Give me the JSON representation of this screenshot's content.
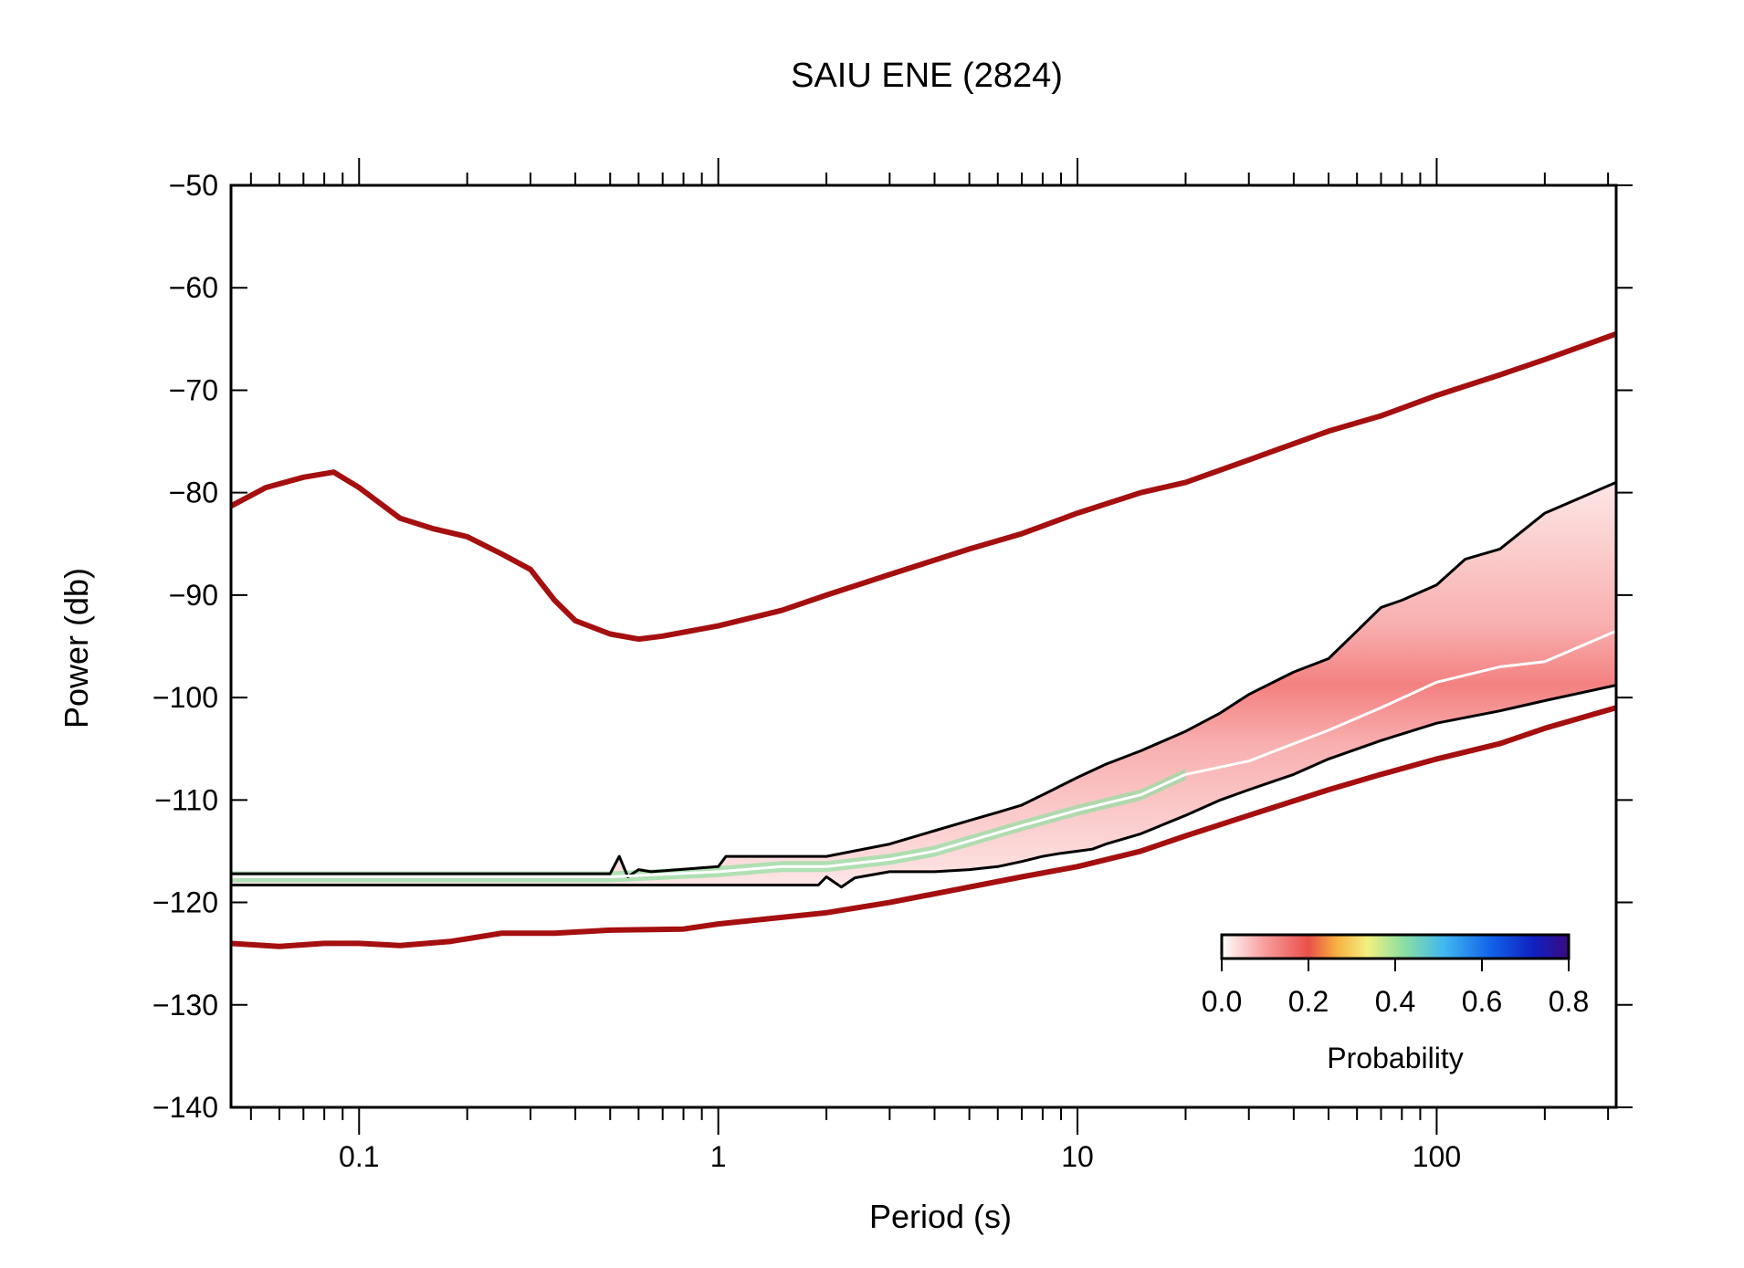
{
  "chart_data": {
    "type": "line",
    "title": "SAIU ENE (2824)",
    "xlabel": "Period (s)",
    "ylabel": "Power (db)",
    "x_scale": "log",
    "xlim": [
      0.044,
      316
    ],
    "ylim": [
      -140,
      -50
    ],
    "x_ticks": [
      0.1,
      1,
      10,
      100
    ],
    "x_tick_labels": [
      "0.1",
      "1",
      "10",
      "100"
    ],
    "y_ticks": [
      -50,
      -60,
      -70,
      -80,
      -90,
      -100,
      -110,
      -120,
      -130,
      -140
    ],
    "y_tick_labels": [
      "−50",
      "−60",
      "−70",
      "−80",
      "−90",
      "−100",
      "−110",
      "−120",
      "−130",
      "−140"
    ],
    "grid": false,
    "colorbar": {
      "label": "Probability",
      "range": [
        0,
        0.8
      ],
      "ticks": [
        0,
        0.2,
        0.4,
        0.6,
        0.8
      ],
      "tick_labels": [
        "0.0",
        "0.2",
        "0.4",
        "0.6",
        "0.8"
      ],
      "placement": "bottom-right"
    },
    "series": [
      {
        "role": "noise-model-high",
        "color": "#a50f0f",
        "x": [
          0.044,
          0.055,
          0.07,
          0.085,
          0.1,
          0.13,
          0.16,
          0.2,
          0.25,
          0.3,
          0.35,
          0.4,
          0.5,
          0.6,
          0.7,
          1.0,
          1.5,
          2,
          3,
          5,
          7,
          10,
          15,
          20,
          30,
          50,
          70,
          100,
          150,
          200,
          316
        ],
        "y": [
          -81.3,
          -79.5,
          -78.5,
          -78.0,
          -79.5,
          -82.5,
          -83.5,
          -84.3,
          -86.0,
          -87.5,
          -90.5,
          -92.5,
          -93.8,
          -94.3,
          -94.0,
          -93.0,
          -91.5,
          -90.0,
          -88.0,
          -85.5,
          -84.0,
          -82.0,
          -80.0,
          -79.0,
          -76.8,
          -74.0,
          -72.5,
          -70.5,
          -68.5,
          -67.0,
          -64.5
        ]
      },
      {
        "role": "noise-model-low",
        "color": "#a50f0f",
        "x": [
          0.044,
          0.06,
          0.08,
          0.1,
          0.13,
          0.18,
          0.25,
          0.35,
          0.5,
          0.8,
          1.0,
          2,
          3,
          5,
          7,
          10,
          15,
          20,
          30,
          50,
          70,
          100,
          150,
          200,
          316
        ],
        "y": [
          -124.0,
          -124.3,
          -124.0,
          -124.0,
          -124.2,
          -123.8,
          -123.0,
          -123.0,
          -122.7,
          -122.6,
          -122.1,
          -121.0,
          -120.0,
          -118.5,
          -117.5,
          -116.5,
          -115.0,
          -113.5,
          -111.5,
          -109.0,
          -107.5,
          -106.0,
          -104.5,
          -103.0,
          -101.0
        ]
      },
      {
        "role": "percentile-upper",
        "color": "#000000",
        "x": [
          0.044,
          0.1,
          0.25,
          0.5,
          0.53,
          0.56,
          0.6,
          0.65,
          1.0,
          1.05,
          2,
          3,
          4,
          5,
          6,
          7,
          8,
          10,
          12,
          15,
          20,
          25,
          30,
          40,
          50,
          60,
          70,
          80,
          100,
          120,
          150,
          200,
          316
        ],
        "y": [
          -117.2,
          -117.2,
          -117.2,
          -117.2,
          -115.5,
          -117.5,
          -116.8,
          -117.0,
          -116.5,
          -115.5,
          -115.5,
          -114.3,
          -113.0,
          -112.0,
          -111.2,
          -110.5,
          -109.5,
          -107.8,
          -106.5,
          -105.2,
          -103.3,
          -101.5,
          -99.7,
          -97.5,
          -96.2,
          -93.5,
          -91.2,
          -90.5,
          -89.0,
          -86.5,
          -85.5,
          -82.0,
          -79.0
        ]
      },
      {
        "role": "percentile-lower",
        "color": "#000000",
        "x": [
          0.044,
          0.1,
          0.5,
          1.0,
          1.9,
          2.0,
          2.2,
          2.4,
          3,
          4,
          5,
          6,
          7,
          8,
          9,
          10,
          11,
          12,
          15,
          20,
          25,
          30,
          40,
          50,
          70,
          100,
          150,
          200,
          316
        ],
        "y": [
          -118.3,
          -118.3,
          -118.3,
          -118.3,
          -118.3,
          -117.5,
          -118.5,
          -117.6,
          -117.0,
          -117.0,
          -116.8,
          -116.5,
          -116.0,
          -115.5,
          -115.2,
          -115.0,
          -114.8,
          -114.3,
          -113.3,
          -111.5,
          -110.0,
          -109.0,
          -107.5,
          -106.0,
          -104.2,
          -102.5,
          -101.3,
          -100.3,
          -98.8
        ]
      },
      {
        "role": "mode",
        "color": "#ffffff",
        "x": [
          0.044,
          0.5,
          1.0,
          1.5,
          2,
          3,
          4,
          5,
          7,
          10,
          15,
          20,
          30,
          40,
          50,
          70,
          100,
          150,
          200,
          316
        ],
        "y": [
          -117.5,
          -117.5,
          -117.0,
          -116.5,
          -116.5,
          -115.8,
          -115.0,
          -114.0,
          -112.5,
          -111.0,
          -109.5,
          -107.5,
          -106.2,
          -104.5,
          -103.2,
          -101.0,
          -98.5,
          -97.0,
          -96.5,
          -93.5
        ]
      }
    ]
  }
}
